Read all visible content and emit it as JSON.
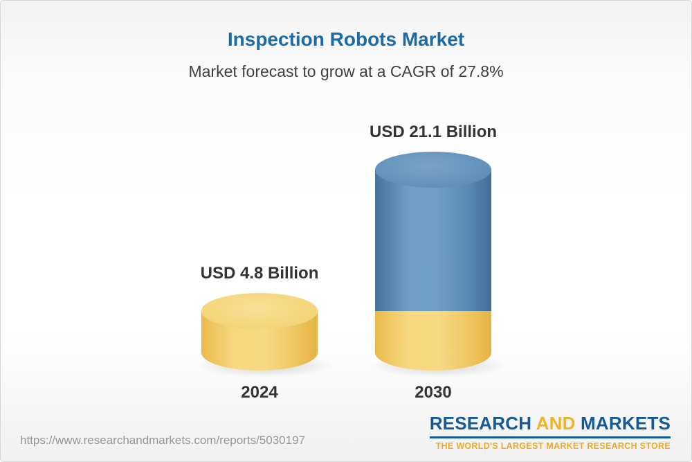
{
  "header": {
    "title": "Inspection Robots Market",
    "subtitle": "Market forecast to grow at a CAGR of 27.8%"
  },
  "chart_data": {
    "type": "bar",
    "title": "Inspection Robots Market",
    "subtitle": "Market forecast to grow at a CAGR of 27.8%",
    "categories": [
      "2024",
      "2030"
    ],
    "values": [
      4.8,
      21.1
    ],
    "value_labels": [
      "USD 4.8 Billion",
      "USD 21.1 Billion"
    ],
    "unit": "USD Billion",
    "cagr": "27.8%",
    "legend": "none",
    "grid": false,
    "colors": {
      "bar_2024": "#f5d57c",
      "bar_2030_growth": "#5f8fb8",
      "bar_2030_base": "#f5d57c",
      "title_blue": "#1a6ba6"
    }
  },
  "footer": {
    "url": "https://www.researchandmarkets.com/reports/5030197",
    "logo": {
      "research": "RESEARCH",
      "and": "AND",
      "markets": "MARKETS",
      "tagline": "THE WORLD'S LARGEST MARKET RESEARCH STORE",
      "brand_blue": "#155a96",
      "brand_gold": "#f0b429"
    }
  }
}
